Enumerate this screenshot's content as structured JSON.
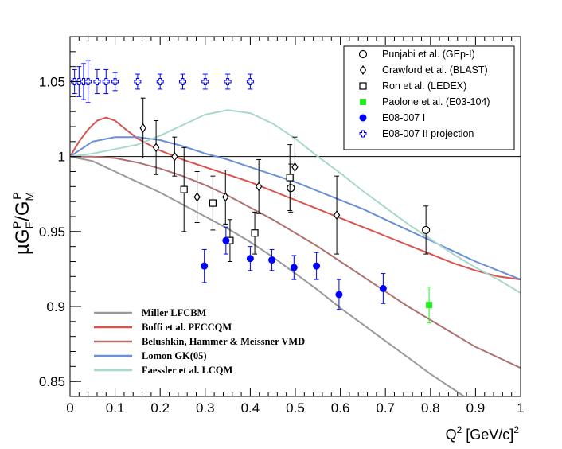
{
  "chart_data": {
    "type": "scatter",
    "title": "",
    "xlabel": {
      "base": "Q",
      "sup": "2",
      "unit_open": " [GeV/c]",
      "unit_sup": "2"
    },
    "ylabel": {
      "mu": "µ",
      "g1": "G",
      "g1_sup": "P",
      "g1_sub": "E",
      "slash": "/",
      "g2": "G",
      "g2_sup": "P",
      "g2_sub": "M"
    },
    "xlim": [
      0,
      1
    ],
    "ylim": [
      0.84,
      1.08
    ],
    "x_ticks": [
      0,
      0.1,
      0.2,
      0.3,
      0.4,
      0.5,
      0.6,
      0.7,
      0.8,
      0.9,
      1
    ],
    "x_tick_labels": [
      "0",
      "0.1",
      "0.2",
      "0.3",
      "0.4",
      "0.5",
      "0.6",
      "0.7",
      "0.8",
      "0.9",
      "1"
    ],
    "y_ticks": [
      0.85,
      0.9,
      0.95,
      1,
      1.05
    ],
    "y_tick_labels": [
      "0.85",
      "0.9",
      "0.95",
      "1",
      "1.05"
    ],
    "reference_line": 1.0,
    "series": [
      {
        "name": "Punjabi et al. (GEp-I)",
        "marker": "open-circle",
        "color": "#000000",
        "points": [
          {
            "x": 0.49,
            "y": 0.979,
            "err": 0.016
          },
          {
            "x": 0.79,
            "y": 0.951,
            "err": 0.016
          }
        ]
      },
      {
        "name": "Crawford et al. (BLAST)",
        "marker": "open-diamond",
        "color": "#000000",
        "points": [
          {
            "x": 0.162,
            "y": 1.019,
            "err": 0.02
          },
          {
            "x": 0.191,
            "y": 1.006,
            "err": 0.018
          },
          {
            "x": 0.232,
            "y": 1.0,
            "err": 0.013
          },
          {
            "x": 0.282,
            "y": 0.973,
            "err": 0.017
          },
          {
            "x": 0.345,
            "y": 0.973,
            "err": 0.018
          },
          {
            "x": 0.419,
            "y": 0.98,
            "err": 0.018
          },
          {
            "x": 0.499,
            "y": 0.993,
            "err": 0.02
          },
          {
            "x": 0.592,
            "y": 0.961,
            "err": 0.026
          }
        ]
      },
      {
        "name": "Ron et al. (LEDEX)",
        "marker": "open-square",
        "color": "#000000",
        "points": [
          {
            "x": 0.253,
            "y": 0.978,
            "err": 0.028
          },
          {
            "x": 0.317,
            "y": 0.969,
            "err": 0.018
          },
          {
            "x": 0.355,
            "y": 0.944,
            "err": 0.014
          },
          {
            "x": 0.41,
            "y": 0.949,
            "err": 0.014
          },
          {
            "x": 0.488,
            "y": 0.986,
            "err": 0.022
          }
        ]
      },
      {
        "name": "Paolone et al. (E03-104)",
        "marker": "filled-square",
        "color": "#22ee22",
        "points": [
          {
            "x": 0.797,
            "y": 0.901,
            "err": 0.012
          }
        ]
      },
      {
        "name": "E08-007 I",
        "marker": "filled-circle",
        "color": "#0000ff",
        "points": [
          {
            "x": 0.298,
            "y": 0.927,
            "err": 0.011
          },
          {
            "x": 0.346,
            "y": 0.944,
            "err": 0.009
          },
          {
            "x": 0.4,
            "y": 0.932,
            "err": 0.008
          },
          {
            "x": 0.448,
            "y": 0.931,
            "err": 0.007
          },
          {
            "x": 0.497,
            "y": 0.926,
            "err": 0.008
          },
          {
            "x": 0.547,
            "y": 0.927,
            "err": 0.009
          },
          {
            "x": 0.597,
            "y": 0.908,
            "err": 0.01
          },
          {
            "x": 0.695,
            "y": 0.912,
            "err": 0.01
          }
        ]
      },
      {
        "name": "E08-007 II projection",
        "marker": "open-cross",
        "color": "#0000ff",
        "points": [
          {
            "x": 0.01,
            "y": 1.05,
            "err": 0.008
          },
          {
            "x": 0.02,
            "y": 1.05,
            "err": 0.01
          },
          {
            "x": 0.03,
            "y": 1.05,
            "err": 0.012
          },
          {
            "x": 0.04,
            "y": 1.05,
            "err": 0.014
          },
          {
            "x": 0.06,
            "y": 1.05,
            "err": 0.008
          },
          {
            "x": 0.08,
            "y": 1.05,
            "err": 0.008
          },
          {
            "x": 0.1,
            "y": 1.05,
            "err": 0.006
          },
          {
            "x": 0.15,
            "y": 1.05,
            "err": 0.005
          },
          {
            "x": 0.2,
            "y": 1.05,
            "err": 0.005
          },
          {
            "x": 0.25,
            "y": 1.05,
            "err": 0.005
          },
          {
            "x": 0.3,
            "y": 1.05,
            "err": 0.005
          },
          {
            "x": 0.35,
            "y": 1.05,
            "err": 0.005
          },
          {
            "x": 0.4,
            "y": 1.05,
            "err": 0.005
          }
        ]
      }
    ],
    "curves": [
      {
        "name": "Miller LFCBM",
        "color": "#999999",
        "points": [
          [
            0,
            1.0
          ],
          [
            0.05,
            0.997
          ],
          [
            0.1,
            0.99
          ],
          [
            0.15,
            0.983
          ],
          [
            0.2,
            0.976
          ],
          [
            0.25,
            0.968
          ],
          [
            0.3,
            0.96
          ],
          [
            0.35,
            0.952
          ],
          [
            0.4,
            0.943
          ],
          [
            0.45,
            0.933
          ],
          [
            0.5,
            0.922
          ],
          [
            0.55,
            0.911
          ],
          [
            0.6,
            0.899
          ],
          [
            0.65,
            0.888
          ],
          [
            0.7,
            0.877
          ],
          [
            0.75,
            0.866
          ],
          [
            0.8,
            0.855
          ],
          [
            0.85,
            0.845
          ],
          [
            0.9,
            0.835
          ],
          [
            0.95,
            0.825
          ],
          [
            1.0,
            0.815
          ]
        ]
      },
      {
        "name": "Boffi et al. PFCCQM",
        "color": "#d9534f",
        "points": [
          [
            0,
            1.0
          ],
          [
            0.02,
            1.01
          ],
          [
            0.04,
            1.018
          ],
          [
            0.06,
            1.024
          ],
          [
            0.08,
            1.026
          ],
          [
            0.1,
            1.024
          ],
          [
            0.12,
            1.019
          ],
          [
            0.15,
            1.012
          ],
          [
            0.2,
            1.004
          ],
          [
            0.25,
            0.998
          ],
          [
            0.3,
            0.993
          ],
          [
            0.35,
            0.988
          ],
          [
            0.4,
            0.983
          ],
          [
            0.45,
            0.977
          ],
          [
            0.5,
            0.971
          ],
          [
            0.55,
            0.965
          ],
          [
            0.6,
            0.959
          ],
          [
            0.65,
            0.953
          ],
          [
            0.7,
            0.947
          ],
          [
            0.75,
            0.941
          ],
          [
            0.8,
            0.935
          ],
          [
            0.85,
            0.929
          ],
          [
            0.9,
            0.924
          ],
          [
            0.95,
            0.92
          ],
          [
            1.0,
            0.918
          ]
        ]
      },
      {
        "name": "Belushkin, Hammer & Meissner VMD",
        "color": "#b07070",
        "points": [
          [
            0,
            1.0
          ],
          [
            0.05,
            1.0
          ],
          [
            0.1,
            0.999
          ],
          [
            0.15,
            0.996
          ],
          [
            0.2,
            0.992
          ],
          [
            0.25,
            0.987
          ],
          [
            0.3,
            0.981
          ],
          [
            0.35,
            0.974
          ],
          [
            0.4,
            0.966
          ],
          [
            0.45,
            0.958
          ],
          [
            0.5,
            0.949
          ],
          [
            0.55,
            0.94
          ],
          [
            0.6,
            0.93
          ],
          [
            0.65,
            0.92
          ],
          [
            0.7,
            0.91
          ],
          [
            0.75,
            0.9
          ],
          [
            0.8,
            0.891
          ],
          [
            0.85,
            0.882
          ],
          [
            0.9,
            0.873
          ],
          [
            0.95,
            0.866
          ],
          [
            1.0,
            0.859
          ]
        ]
      },
      {
        "name": "Lomon GK(05)",
        "color": "#6a8fd6",
        "points": [
          [
            0,
            1.0
          ],
          [
            0.05,
            1.01
          ],
          [
            0.1,
            1.013
          ],
          [
            0.15,
            1.013
          ],
          [
            0.2,
            1.011
          ],
          [
            0.25,
            1.007
          ],
          [
            0.3,
            1.002
          ],
          [
            0.35,
            0.998
          ],
          [
            0.4,
            0.993
          ],
          [
            0.45,
            0.988
          ],
          [
            0.5,
            0.983
          ],
          [
            0.55,
            0.977
          ],
          [
            0.6,
            0.971
          ],
          [
            0.65,
            0.965
          ],
          [
            0.7,
            0.958
          ],
          [
            0.75,
            0.951
          ],
          [
            0.8,
            0.944
          ],
          [
            0.85,
            0.937
          ],
          [
            0.9,
            0.93
          ],
          [
            0.95,
            0.924
          ],
          [
            1.0,
            0.918
          ]
        ]
      },
      {
        "name": "Faessler et al. LCQM",
        "color": "#a8d8cc",
        "points": [
          [
            0,
            1.0
          ],
          [
            0.05,
            1.002
          ],
          [
            0.1,
            1.005
          ],
          [
            0.15,
            1.008
          ],
          [
            0.2,
            1.014
          ],
          [
            0.25,
            1.021
          ],
          [
            0.3,
            1.028
          ],
          [
            0.35,
            1.031
          ],
          [
            0.4,
            1.029
          ],
          [
            0.45,
            1.022
          ],
          [
            0.5,
            1.012
          ],
          [
            0.55,
            1.0
          ],
          [
            0.6,
            0.989
          ],
          [
            0.65,
            0.977
          ],
          [
            0.7,
            0.966
          ],
          [
            0.75,
            0.955
          ],
          [
            0.8,
            0.945
          ],
          [
            0.85,
            0.935
          ],
          [
            0.9,
            0.926
          ],
          [
            0.95,
            0.918
          ],
          [
            1.0,
            0.909
          ]
        ]
      }
    ],
    "legend_position": "top-right",
    "curve_legend_position": "bottom-left"
  }
}
